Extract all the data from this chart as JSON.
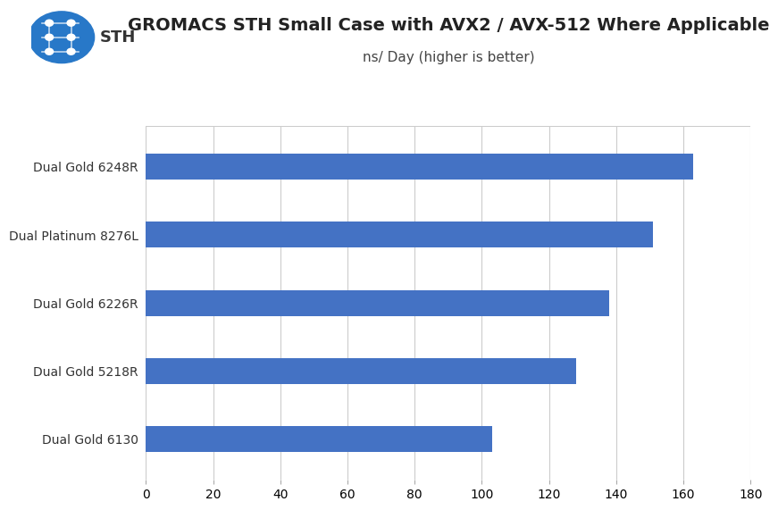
{
  "title": "GROMACS STH Small Case with AVX2 / AVX-512 Where Applicable",
  "subtitle": "ns/ Day (higher is better)",
  "categories": [
    "Dual Gold 6248R",
    "Dual Platinum 8276L",
    "Dual Gold 6226R",
    "Dual Gold 5218R",
    "Dual Gold 6130"
  ],
  "values": [
    163,
    151,
    138,
    128,
    103
  ],
  "bar_color": "#4472C4",
  "xlim": [
    0,
    180
  ],
  "xticks": [
    0,
    20,
    40,
    60,
    80,
    100,
    120,
    140,
    160,
    180
  ],
  "background_color": "#ffffff",
  "grid_color": "#cccccc",
  "title_fontsize": 14,
  "subtitle_fontsize": 11,
  "label_fontsize": 10,
  "tick_fontsize": 10,
  "bar_height": 0.38
}
